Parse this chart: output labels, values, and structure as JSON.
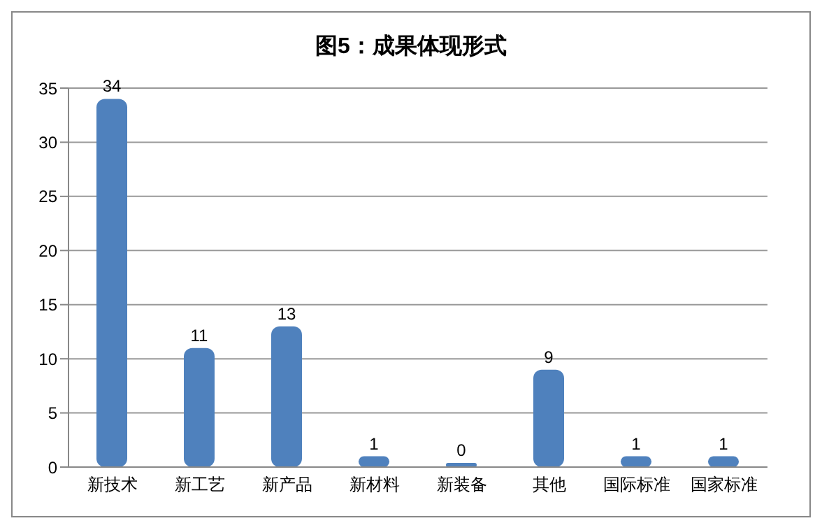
{
  "chart_data": {
    "type": "bar",
    "title": "图5：成果体现形式",
    "categories": [
      "新技术",
      "新工艺",
      "新产品",
      "新材料",
      "新装备",
      "其他",
      "国际标准",
      "国家标准"
    ],
    "values": [
      34,
      11,
      13,
      1,
      0,
      9,
      1,
      1
    ],
    "color": "#4f81bd",
    "ylim": [
      0,
      35
    ],
    "yticks": [
      0,
      5,
      10,
      15,
      20,
      25,
      30,
      35
    ],
    "grid": "y",
    "data_labels": true
  }
}
